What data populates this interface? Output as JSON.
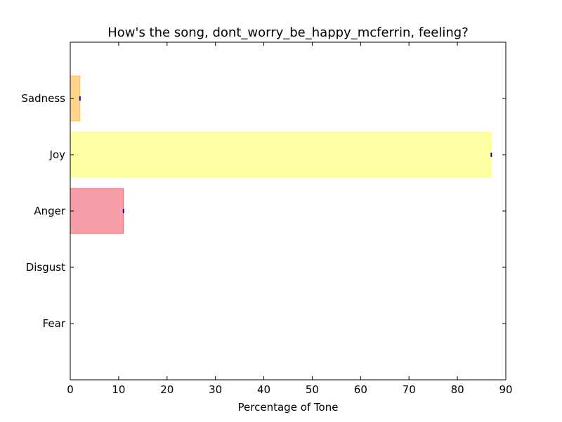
{
  "chart_data": {
    "type": "bar",
    "orientation": "horizontal",
    "title": "How's the song, dont_worry_be_happy_mcferrin, feeling?",
    "xlabel": "Percentage of Tone",
    "ylabel": "",
    "xlim": [
      0,
      90
    ],
    "x_ticks": [
      0,
      10,
      20,
      30,
      40,
      50,
      60,
      70,
      80,
      90
    ],
    "grid": false,
    "categories": [
      "Fear",
      "Disgust",
      "Anger",
      "Joy",
      "Sadness"
    ],
    "values": [
      0,
      0,
      11,
      87,
      2
    ],
    "colors": [
      "#ff7f50",
      "#90ee90",
      "#e8283e",
      "#ffff33",
      "#ffa500"
    ],
    "bar_opacity": 0.45,
    "error_marker_color": "#0000cc"
  }
}
